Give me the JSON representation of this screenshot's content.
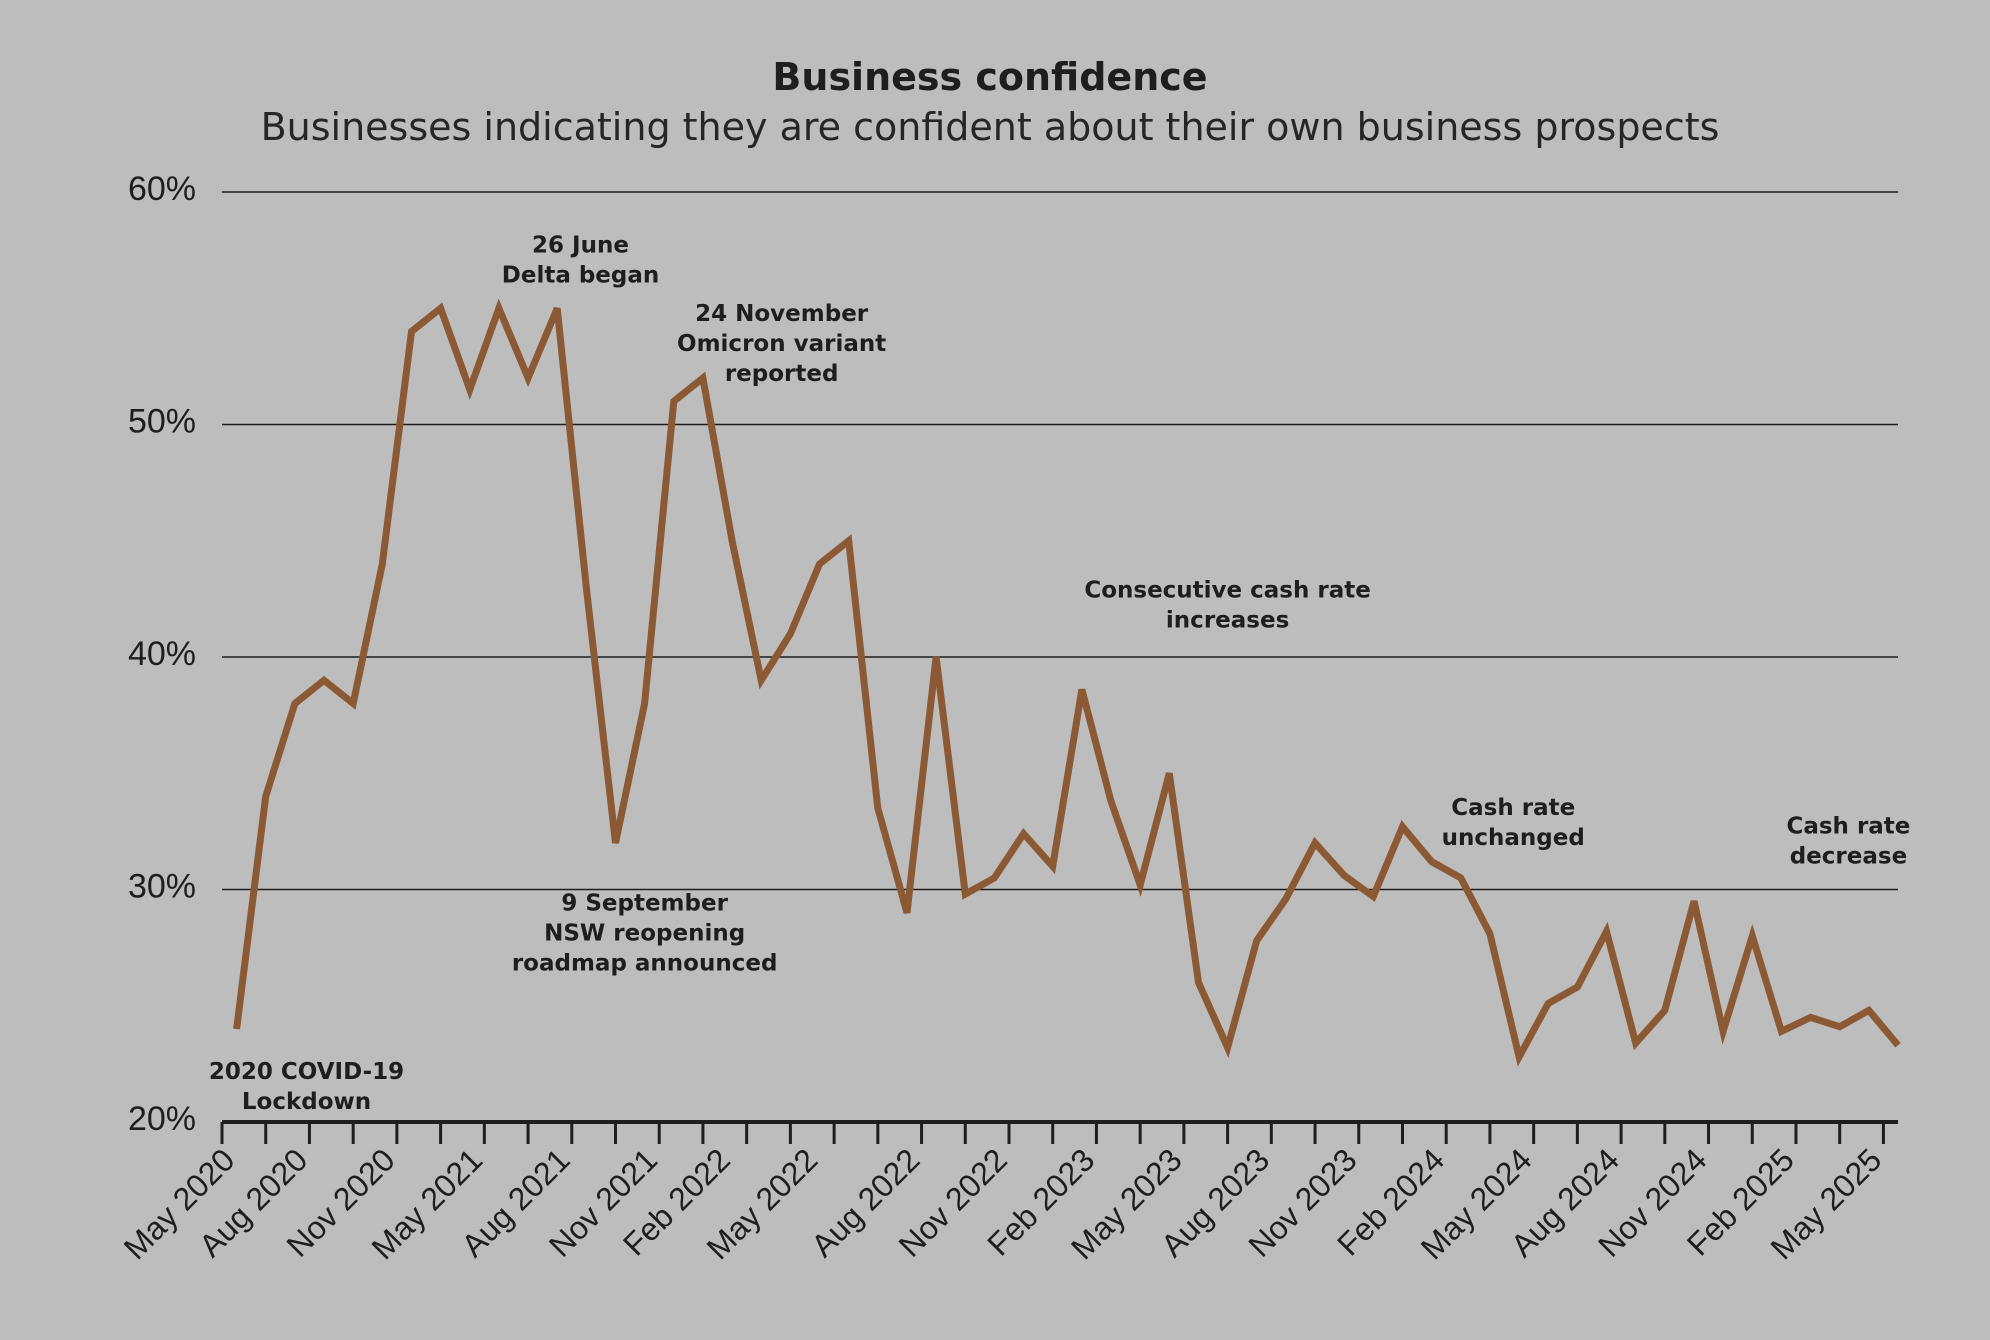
{
  "chart_data": {
    "type": "line",
    "title": "Business confidence",
    "subtitle": "Businesses indicating they are confident about their own business prospects",
    "ylim": [
      20,
      60
    ],
    "yticks": [
      20,
      30,
      40,
      50,
      60
    ],
    "ytick_labels": [
      "20%",
      "30%",
      "40%",
      "50%",
      "60%"
    ],
    "x_tick_labels": [
      "May 2020",
      "Aug 2020",
      "Nov 2020",
      "May 2021",
      "Aug 2021",
      "Nov 2021",
      "Feb 2022",
      "May 2022",
      "Aug 2022",
      "Nov 2022",
      "Feb 2023",
      "May 2023",
      "Aug 2023",
      "Nov 2023",
      "Feb 2024",
      "May 2024",
      "Aug 2024",
      "Nov 2024",
      "Feb 2025",
      "May 2025"
    ],
    "x_tick_positions": [
      0.5,
      3,
      6,
      9,
      12,
      15,
      17.5,
      20.5,
      24,
      27,
      30,
      33,
      36,
      39,
      42,
      45,
      48,
      51,
      54,
      57
    ],
    "x_range": [
      0,
      57.5
    ],
    "grid": true,
    "color": "#8b5a35",
    "series": [
      {
        "x": [
          0.5,
          1.5,
          2.5,
          3.5,
          4.5,
          5.5,
          6.5,
          7.5,
          8.5,
          9.5,
          10.5,
          11.5,
          12.5,
          13.5,
          14.5,
          15.5,
          16.5,
          17.5,
          18.5,
          19.5,
          20.5,
          21.5,
          22.5,
          23.5,
          24.5,
          25.5,
          26.5,
          27.5,
          28.5,
          29.5,
          30.5,
          31.5,
          32.5,
          33.5,
          34.5,
          35.5,
          36.5,
          37.5,
          38.5,
          39.5,
          40.5,
          41.5,
          42.5,
          43.5,
          44.5,
          45.5,
          46.5,
          47.5,
          48.5,
          49.5,
          50.5,
          51.5,
          52.5,
          53.5,
          54.5,
          55.5,
          56.5,
          57.5
        ],
        "values": [
          24.0,
          34.0,
          38.0,
          39.0,
          38.0,
          44.0,
          54.0,
          55.0,
          51.5,
          55.0,
          52.0,
          55.0,
          43.0,
          32.0,
          38.0,
          51.0,
          52.0,
          45.0,
          39.0,
          41.0,
          44.0,
          45.0,
          33.5,
          29.0,
          40.0,
          29.8,
          30.5,
          32.4,
          31.0,
          38.6,
          33.8,
          30.2,
          35.0,
          26.0,
          23.2,
          27.8,
          29.6,
          32.0,
          30.6,
          29.7,
          32.7,
          31.2,
          30.5,
          28.1,
          22.8,
          25.1,
          25.8,
          28.2,
          23.4,
          24.8,
          29.5,
          23.9,
          28.0,
          23.9,
          24.5,
          24.1,
          24.8,
          23.3
        ]
      }
    ],
    "annotations": [
      {
        "lines": [
          "2020 COVID-19",
          "Lockdown"
        ],
        "x": 2.9,
        "y": 21.85
      },
      {
        "lines": [
          "26 June",
          "Delta began"
        ],
        "x": 12.3,
        "y": 57.4
      },
      {
        "lines": [
          "24 November",
          "Omicron variant",
          "reported"
        ],
        "x": 19.2,
        "y": 54.45
      },
      {
        "lines": [
          "9 September",
          "NSW reopening",
          "roadmap announced"
        ],
        "x": 14.5,
        "y": 29.1
      },
      {
        "lines": [
          "Consecutive cash rate",
          "increases"
        ],
        "x": 34.5,
        "y": 42.55
      },
      {
        "lines": [
          "Cash rate",
          "unchanged"
        ],
        "x": 44.3,
        "y": 33.2
      },
      {
        "lines": [
          "Cash rate",
          "decrease"
        ],
        "x": 55.8,
        "y": 32.4
      }
    ]
  }
}
